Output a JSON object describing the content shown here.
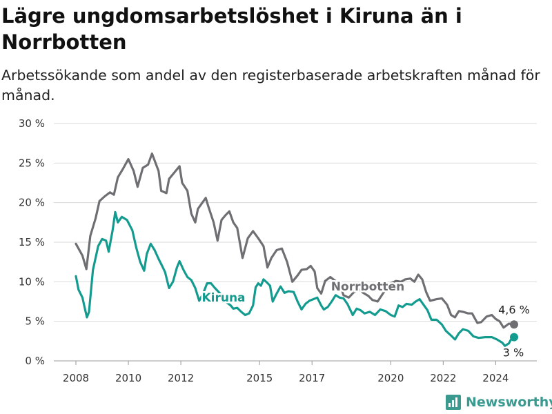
{
  "title": "Lägre ungdomsarbetslöshet i Kiruna än i Norrbotten",
  "subtitle": "Arbetssökande som andel av den registerbaserade arbetskraften månad för månad.",
  "brand": {
    "name": "Newsworthy"
  },
  "colors": {
    "kiruna": "#149b8f",
    "norrbotten": "#6f6e73",
    "brand": "#3a9a90"
  },
  "chart_data": {
    "type": "line",
    "title": "Lägre ungdomsarbetslöshet i Kiruna än i Norrbotten",
    "subtitle": "Arbetssökande som andel av den registerbaserade arbetskraften månad för månad.",
    "xlabel": "",
    "ylabel": "",
    "x_range": [
      2008.0,
      2024.7
    ],
    "ylim": [
      0,
      30
    ],
    "y_ticks": [
      0,
      5,
      10,
      15,
      20,
      25,
      30
    ],
    "y_tick_labels": [
      "0 %",
      "5 %",
      "10 %",
      "15 %",
      "20 %",
      "25 %",
      "30 %"
    ],
    "x_ticks": [
      2008,
      2010,
      2012,
      2015,
      2017,
      2020,
      2022,
      2024
    ],
    "x_tick_labels": [
      "2008",
      "2010",
      "2012",
      "2015",
      "2017",
      "2020",
      "2022",
      "2024"
    ],
    "grid": "horizontal",
    "legend": "direct labels on lines",
    "series": [
      {
        "name": "Norrbotten",
        "end_label": "4,6 %",
        "points": [
          [
            2008.0,
            14.8
          ],
          [
            2008.25,
            13.3
          ],
          [
            2008.4,
            11.6
          ],
          [
            2008.55,
            15.8
          ],
          [
            2008.75,
            18.0
          ],
          [
            2008.9,
            20.2
          ],
          [
            2009.1,
            20.8
          ],
          [
            2009.3,
            21.3
          ],
          [
            2009.45,
            21.0
          ],
          [
            2009.6,
            23.2
          ],
          [
            2009.8,
            24.3
          ],
          [
            2010.0,
            25.5
          ],
          [
            2010.2,
            24.0
          ],
          [
            2010.35,
            22.0
          ],
          [
            2010.55,
            24.4
          ],
          [
            2010.75,
            24.8
          ],
          [
            2010.9,
            26.2
          ],
          [
            2011.15,
            24.0
          ],
          [
            2011.25,
            21.5
          ],
          [
            2011.45,
            21.2
          ],
          [
            2011.55,
            23.0
          ],
          [
            2011.75,
            23.8
          ],
          [
            2011.95,
            24.6
          ],
          [
            2012.05,
            22.5
          ],
          [
            2012.25,
            21.5
          ],
          [
            2012.4,
            18.6
          ],
          [
            2012.55,
            17.5
          ],
          [
            2012.65,
            19.2
          ],
          [
            2012.95,
            20.6
          ],
          [
            2013.05,
            19.5
          ],
          [
            2013.25,
            17.5
          ],
          [
            2013.4,
            15.2
          ],
          [
            2013.55,
            17.8
          ],
          [
            2013.7,
            18.4
          ],
          [
            2013.85,
            18.9
          ],
          [
            2014.0,
            17.5
          ],
          [
            2014.15,
            16.8
          ],
          [
            2014.35,
            13.0
          ],
          [
            2014.55,
            15.5
          ],
          [
            2014.75,
            16.4
          ],
          [
            2014.95,
            15.5
          ],
          [
            2015.15,
            14.5
          ],
          [
            2015.3,
            11.8
          ],
          [
            2015.45,
            13.0
          ],
          [
            2015.65,
            14.0
          ],
          [
            2015.85,
            14.2
          ],
          [
            2016.05,
            12.5
          ],
          [
            2016.25,
            10.0
          ],
          [
            2016.45,
            10.8
          ],
          [
            2016.6,
            11.5
          ],
          [
            2016.8,
            11.6
          ],
          [
            2016.95,
            12.0
          ],
          [
            2017.1,
            11.3
          ],
          [
            2017.2,
            9.2
          ],
          [
            2017.35,
            8.5
          ],
          [
            2017.5,
            10.1
          ],
          [
            2017.7,
            10.6
          ],
          [
            2017.85,
            10.2
          ],
          [
            2018.05,
            9.8
          ],
          [
            2018.2,
            8.3
          ],
          [
            2018.4,
            8.0
          ],
          [
            2018.6,
            8.7
          ],
          [
            2018.8,
            9.0
          ],
          [
            2018.95,
            8.6
          ],
          [
            2019.15,
            8.2
          ],
          [
            2019.3,
            7.7
          ],
          [
            2019.5,
            7.5
          ],
          [
            2019.7,
            8.5
          ],
          [
            2019.85,
            9.3
          ],
          [
            2020.0,
            9.8
          ],
          [
            2020.2,
            10.1
          ],
          [
            2020.4,
            10.0
          ],
          [
            2020.55,
            10.3
          ],
          [
            2020.75,
            10.4
          ],
          [
            2020.9,
            10.0
          ],
          [
            2021.05,
            10.9
          ],
          [
            2021.2,
            10.3
          ],
          [
            2021.35,
            8.7
          ],
          [
            2021.5,
            7.6
          ],
          [
            2021.75,
            7.8
          ],
          [
            2021.95,
            7.9
          ],
          [
            2022.15,
            7.1
          ],
          [
            2022.3,
            5.8
          ],
          [
            2022.45,
            5.5
          ],
          [
            2022.6,
            6.3
          ],
          [
            2022.75,
            6.2
          ],
          [
            2022.95,
            6.0
          ],
          [
            2023.1,
            6.0
          ],
          [
            2023.3,
            4.8
          ],
          [
            2023.45,
            4.9
          ],
          [
            2023.65,
            5.6
          ],
          [
            2023.85,
            5.8
          ],
          [
            2024.0,
            5.3
          ],
          [
            2024.15,
            5.0
          ],
          [
            2024.3,
            4.2
          ],
          [
            2024.5,
            4.7
          ],
          [
            2024.7,
            4.6
          ]
        ]
      },
      {
        "name": "Kiruna",
        "end_label": "3 %",
        "points": [
          [
            2008.0,
            10.7
          ],
          [
            2008.1,
            9.0
          ],
          [
            2008.25,
            8.0
          ],
          [
            2008.35,
            6.5
          ],
          [
            2008.42,
            5.5
          ],
          [
            2008.5,
            6.2
          ],
          [
            2008.65,
            11.5
          ],
          [
            2008.85,
            14.5
          ],
          [
            2009.0,
            15.4
          ],
          [
            2009.15,
            15.2
          ],
          [
            2009.25,
            13.8
          ],
          [
            2009.4,
            16.5
          ],
          [
            2009.5,
            18.8
          ],
          [
            2009.6,
            17.5
          ],
          [
            2009.75,
            18.2
          ],
          [
            2009.95,
            17.8
          ],
          [
            2010.15,
            16.5
          ],
          [
            2010.3,
            14.3
          ],
          [
            2010.45,
            12.5
          ],
          [
            2010.6,
            11.4
          ],
          [
            2010.7,
            13.5
          ],
          [
            2010.85,
            14.8
          ],
          [
            2011.0,
            14.0
          ],
          [
            2011.15,
            12.9
          ],
          [
            2011.3,
            11.9
          ],
          [
            2011.4,
            11.2
          ],
          [
            2011.55,
            9.2
          ],
          [
            2011.7,
            10.0
          ],
          [
            2011.85,
            11.8
          ],
          [
            2011.95,
            12.6
          ],
          [
            2012.1,
            11.5
          ],
          [
            2012.25,
            10.6
          ],
          [
            2012.4,
            10.2
          ],
          [
            2012.55,
            9.2
          ],
          [
            2012.7,
            7.6
          ],
          [
            2012.85,
            8.5
          ],
          [
            2013.0,
            9.8
          ],
          [
            2013.15,
            9.8
          ],
          [
            2013.3,
            9.2
          ],
          [
            2013.5,
            8.5
          ],
          [
            2013.7,
            7.5
          ],
          [
            2013.9,
            7.0
          ],
          [
            2014.0,
            6.6
          ],
          [
            2014.15,
            6.7
          ],
          [
            2014.3,
            6.2
          ],
          [
            2014.45,
            5.8
          ],
          [
            2014.6,
            6.0
          ],
          [
            2014.75,
            7.0
          ],
          [
            2014.85,
            9.3
          ],
          [
            2014.95,
            9.8
          ],
          [
            2015.05,
            9.5
          ],
          [
            2015.15,
            10.3
          ],
          [
            2015.25,
            10.0
          ],
          [
            2015.4,
            9.5
          ],
          [
            2015.5,
            7.5
          ],
          [
            2015.65,
            8.5
          ],
          [
            2015.8,
            9.4
          ],
          [
            2015.95,
            8.6
          ],
          [
            2016.1,
            8.8
          ],
          [
            2016.3,
            8.7
          ],
          [
            2016.45,
            7.5
          ],
          [
            2016.6,
            6.5
          ],
          [
            2016.75,
            7.2
          ],
          [
            2016.9,
            7.6
          ],
          [
            2017.05,
            7.8
          ],
          [
            2017.2,
            8.0
          ],
          [
            2017.35,
            7.0
          ],
          [
            2017.45,
            6.5
          ],
          [
            2017.6,
            6.8
          ],
          [
            2017.75,
            7.5
          ],
          [
            2017.9,
            8.3
          ],
          [
            2018.05,
            8.0
          ],
          [
            2018.2,
            7.9
          ],
          [
            2018.35,
            7.2
          ],
          [
            2018.55,
            5.8
          ],
          [
            2018.7,
            6.6
          ],
          [
            2018.85,
            6.4
          ],
          [
            2019.0,
            6.0
          ],
          [
            2019.2,
            6.2
          ],
          [
            2019.4,
            5.8
          ],
          [
            2019.6,
            6.5
          ],
          [
            2019.8,
            6.3
          ],
          [
            2020.0,
            5.8
          ],
          [
            2020.15,
            5.6
          ],
          [
            2020.3,
            7.0
          ],
          [
            2020.45,
            6.8
          ],
          [
            2020.6,
            7.2
          ],
          [
            2020.8,
            7.1
          ],
          [
            2020.95,
            7.5
          ],
          [
            2021.1,
            7.8
          ],
          [
            2021.25,
            7.1
          ],
          [
            2021.4,
            6.4
          ],
          [
            2021.55,
            5.2
          ],
          [
            2021.75,
            5.2
          ],
          [
            2021.95,
            4.6
          ],
          [
            2022.1,
            3.8
          ],
          [
            2022.3,
            3.2
          ],
          [
            2022.45,
            2.7
          ],
          [
            2022.6,
            3.5
          ],
          [
            2022.75,
            4.0
          ],
          [
            2022.95,
            3.8
          ],
          [
            2023.15,
            3.1
          ],
          [
            2023.35,
            2.9
          ],
          [
            2023.6,
            3.0
          ],
          [
            2023.85,
            3.0
          ],
          [
            2024.05,
            2.7
          ],
          [
            2024.25,
            2.3
          ],
          [
            2024.35,
            1.9
          ],
          [
            2024.5,
            2.2
          ],
          [
            2024.6,
            2.8
          ],
          [
            2024.7,
            3.0
          ]
        ]
      }
    ]
  }
}
